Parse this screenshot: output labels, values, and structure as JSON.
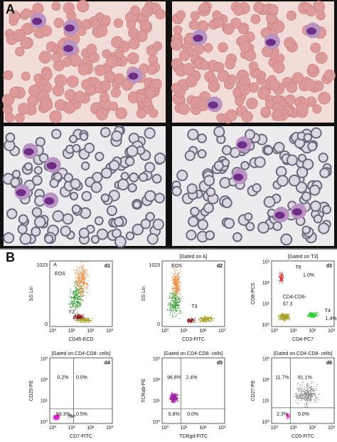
{
  "panel_a": {
    "label": "A"
  },
  "panel_b": {
    "label": "B",
    "plots": [
      {
        "id": "d1",
        "y_label": "SS Lin",
        "x_label": "CD45-ECD",
        "y_ticks": [
          "1023",
          "0"
        ],
        "x_ticks": [
          "10⁰",
          "10¹",
          "10²",
          "10³"
        ],
        "texts": [
          "A",
          "EOS",
          "Y2"
        ]
      },
      {
        "id": "d2",
        "title": "[Gated on A]",
        "y_label": "SS Lin",
        "x_label": "CD3-FITC",
        "y_ticks": [
          "1023",
          "0"
        ],
        "x_ticks": [
          "10⁰",
          "10¹",
          "10²",
          "10³"
        ],
        "texts": [
          "EOS",
          "T3"
        ]
      },
      {
        "id": "d3",
        "title": "[Gated on T3]",
        "y_label": "CD8-PC5",
        "x_label": "CD4-PC7",
        "y_ticks": [
          "10³",
          "10²",
          "10¹",
          "10⁰"
        ],
        "x_ticks": [
          "10⁰",
          "10¹",
          "10²",
          "10³"
        ],
        "texts": [
          "T8",
          "1.0%",
          "CD4-CD8-",
          "97.3",
          "T4",
          "1.4%"
        ]
      },
      {
        "id": "d4",
        "title": "[Gated on CD4-CD8- cells]",
        "y_label": "CD25-PE",
        "x_label": "CD7-FITC",
        "y_ticks": [
          "10³",
          "10²",
          "10¹",
          "10⁰"
        ],
        "x_ticks": [
          "10⁰",
          "10¹",
          "10²",
          "10³"
        ],
        "texts": [
          "0.2%",
          "0.0%",
          "99.3%",
          "0.5%"
        ]
      },
      {
        "id": "d5",
        "title": "[Gated on CD4-CD8- cells]",
        "y_label": "TCRab-PE",
        "x_label": "TCRgd-FITC",
        "y_ticks": [
          "10³",
          "10²",
          "10¹",
          "10⁰"
        ],
        "x_ticks": [
          "10⁰",
          "10¹",
          "10²",
          "10³"
        ],
        "texts": [
          "96.8%",
          "2.4%",
          "0.8%",
          "0.0%"
        ]
      },
      {
        "id": "d6",
        "title": "[Gated on CD4-CD8- cells]",
        "y_label": "CD27-PE",
        "x_label": "CD5-FITC",
        "y_ticks": [
          "10³",
          "10²",
          "10¹",
          "10⁰"
        ],
        "x_ticks": [
          "10⁰",
          "10¹",
          "10²",
          "10³"
        ],
        "texts": [
          "11.7%",
          "81.1%",
          "2.3%",
          "5.0%"
        ]
      }
    ]
  }
}
